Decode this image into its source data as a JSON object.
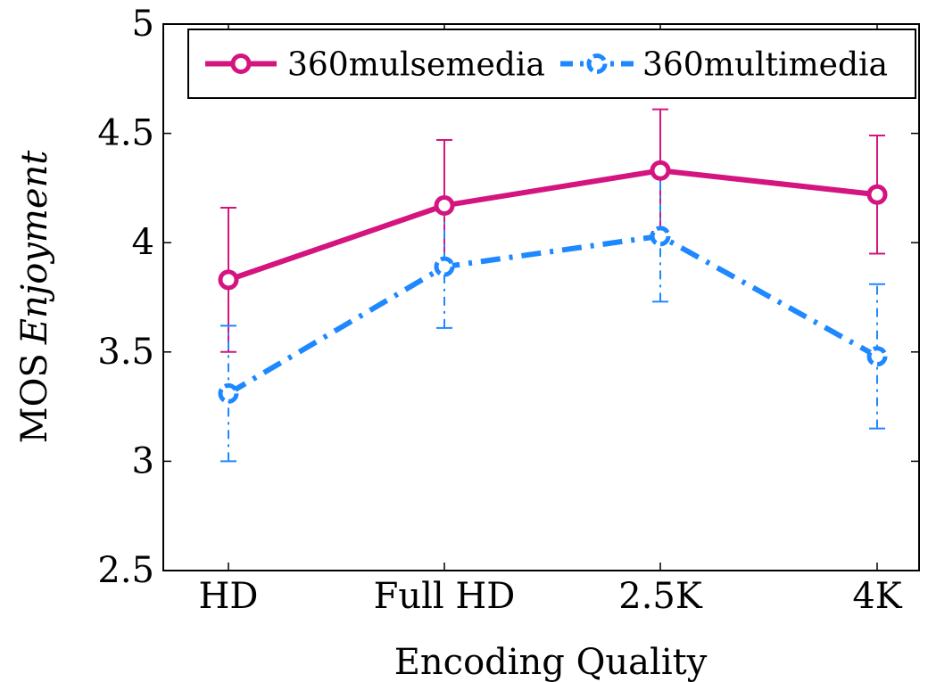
{
  "chart_data": {
    "type": "line",
    "title": "",
    "xlabel": "Encoding Quality",
    "ylabel_prefix": "MOS",
    "ylabel_emph": "Enjoyment",
    "categories": [
      "HD",
      "Full HD",
      "2.5K",
      "4K"
    ],
    "ylim": [
      2.5,
      5
    ],
    "yticks": [
      "2.5",
      "3",
      "3.5",
      "4",
      "4.5",
      "5"
    ],
    "grid": false,
    "legend_position": "top",
    "series": [
      {
        "name": "360mulsemedia",
        "values": [
          3.83,
          4.17,
          4.33,
          4.22
        ],
        "error_low": [
          3.5,
          3.87,
          4.05,
          3.95
        ],
        "error_high": [
          4.16,
          4.47,
          4.61,
          4.49
        ],
        "color": "#d4147f",
        "line_style": "solid",
        "marker": "circle"
      },
      {
        "name": "360multimedia",
        "values": [
          3.31,
          3.89,
          4.03,
          3.48
        ],
        "error_low": [
          3.0,
          3.61,
          3.73,
          3.15
        ],
        "error_high": [
          3.62,
          4.17,
          4.33,
          3.81
        ],
        "color": "#1e88ff",
        "line_style": "dash-dot",
        "marker": "circle"
      }
    ]
  }
}
